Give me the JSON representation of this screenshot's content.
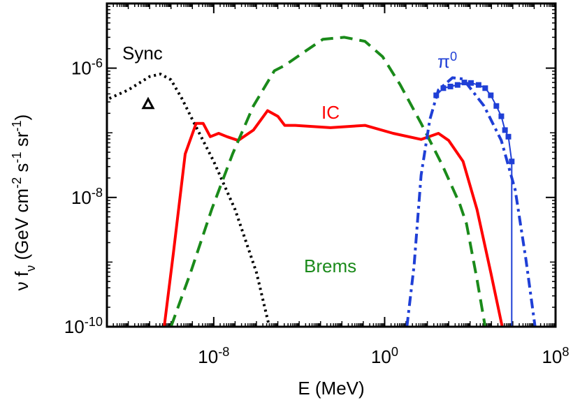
{
  "chart_data": {
    "type": "line",
    "x_label": "E (MeV)",
    "y_label": "ν f_ν (GeV cm^-2 s^-1 sr^-1)",
    "xscale": "log",
    "yscale": "log",
    "xlim": [
      1e-13,
      100000000.0
    ],
    "ylim": [
      1e-10,
      1e-05
    ],
    "xticks": [
      {
        "value": 1e-08,
        "label": "10^-8"
      },
      {
        "value": 1,
        "label": "10^0"
      },
      {
        "value": 100000000.0,
        "label": "10^8"
      }
    ],
    "yticks": [
      {
        "value": 1e-10,
        "label": "10^-10"
      },
      {
        "value": 1e-08,
        "label": "10^-8"
      },
      {
        "value": 1e-06,
        "label": "10^-6"
      }
    ],
    "series": [
      {
        "name": "Sync",
        "color": "#000000",
        "style": "dotted",
        "x": [
          1.3e-13,
          1e-12,
          1e-11,
          3.2e-11,
          1e-10,
          3.2e-10,
          1e-09,
          1e-08,
          1e-07,
          1e-06,
          4e-06
        ],
        "values": [
          3.4e-07,
          4.6e-07,
          7.4e-07,
          8.1e-07,
          6.6e-07,
          3.4e-07,
          1.6e-07,
          3.6e-08,
          6.5e-09,
          6.9e-10,
          1e-10
        ]
      },
      {
        "name": "IC",
        "color": "#ff0000",
        "style": "solid",
        "x": [
          4.8e-11,
          1.3e-10,
          4.6e-10,
          1.5e-09,
          3.2e-09,
          6.9e-09,
          1.7e-08,
          4.2e-08,
          1.4e-07,
          7.2e-07,
          3.3e-06,
          1e-05,
          2.1e-05,
          6.6e-05,
          0.0029,
          0.12,
          2.5,
          51,
          330,
          1000,
          4700,
          21000.0,
          93000.0,
          320000.0
        ],
        "values": [
          1e-10,
          1.4e-09,
          4.7e-08,
          1.4e-07,
          1.4e-07,
          8.7e-08,
          9.8e-08,
          8.7e-08,
          7.6e-08,
          1.1e-07,
          2.2e-07,
          1.8e-07,
          1.3e-07,
          1.3e-07,
          1.2e-07,
          1.3e-07,
          9.8e-08,
          7.9e-08,
          9.8e-08,
          7.6e-08,
          3.6e-08,
          6.5e-09,
          6.9e-10,
          1e-10
        ]
      },
      {
        "name": "Brems",
        "color": "#1a8a1a",
        "style": "dashed",
        "x": [
          1e-10,
          8.3e-10,
          8e-09,
          7.6e-08,
          7.2e-07,
          6.9e-06,
          2.1e-05,
          0.00014,
          0.0013,
          0.013,
          0.12,
          0.81,
          5.4,
          51,
          490,
          3200,
          6800,
          21000.0,
          51000.0
        ],
        "values": [
          1e-10,
          6.9e-10,
          6.5e-09,
          4.7e-08,
          2.6e-07,
          9.1e-07,
          1.1e-06,
          1.7e-06,
          2.8e-06,
          3e-06,
          2.6e-06,
          1.5e-06,
          5.5e-07,
          1.4e-07,
          3.2e-08,
          8.1e-09,
          3.9e-09,
          5.4e-10,
          1e-10
        ]
      },
      {
        "name": "π^0",
        "color": "#1f3fd6",
        "style": "dashdot",
        "x": [
          11,
          24,
          51,
          130,
          330,
          1500,
          4700,
          45000.0,
          290000.0,
          1300000.0,
          4100000.0,
          11000000.0
        ],
        "values": [
          1e-10,
          8.9e-10,
          2.2e-08,
          1.6e-07,
          4.6e-07,
          7.1e-07,
          6.8e-07,
          2.6e-07,
          7.6e-08,
          1.3e-08,
          1.1e-09,
          1e-10
        ]
      },
      {
        "color": "#1f3fd6",
        "style": "points",
        "marker": "square",
        "x": [
          260,
          560,
          1200,
          2600,
          5400,
          11000.0,
          25000.0,
          51000.0,
          93000.0,
          170000.0,
          290000.0,
          430000.0,
          620000.0,
          890000.0
        ],
        "values": [
          3.8e-07,
          4.9e-07,
          5.2e-07,
          5.5e-07,
          6e-07,
          5.9e-07,
          5.5e-07,
          4.9e-07,
          3.8e-07,
          2.6e-07,
          1.8e-07,
          1.1e-07,
          8.7e-08,
          3.6e-08
        ]
      },
      {
        "color": "#000000",
        "style": "points",
        "marker": "triangle",
        "x": [
          8.5e-12
        ],
        "values": [
          2.8e-07
        ]
      }
    ]
  }
}
